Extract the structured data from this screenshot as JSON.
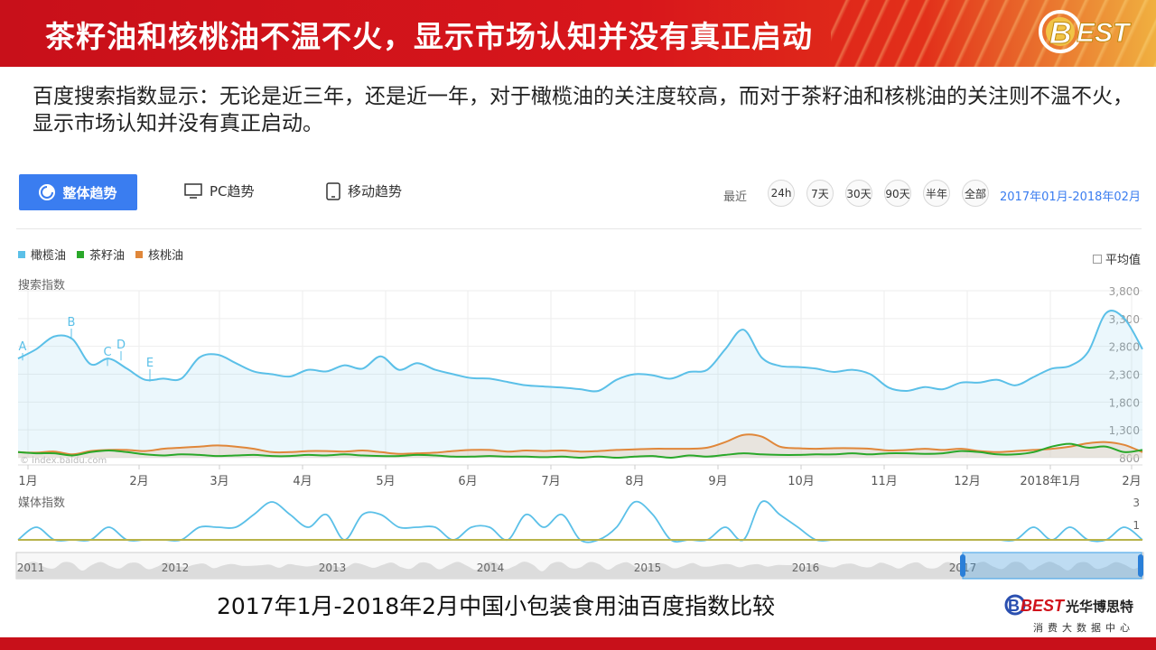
{
  "banner": {
    "title": "茶籽油和核桃油不温不火，显示市场认知并没有真正启动",
    "logo_text": "BEST"
  },
  "intro": "百度搜索指数显示：无论是近三年，还是近一年，对于橄榄油的关注度较高，而对于茶籽油和核桃油的关注则不温不火，显示市场认知并没有真正启动。",
  "toolbar": {
    "overall_label": "整体趋势",
    "pc_label": "PC趋势",
    "mobile_label": "移动趋势",
    "recent_label": "最近",
    "ranges": [
      "24h",
      "7天",
      "30天",
      "90天",
      "半年",
      "全部"
    ],
    "date_range": "2017年01月-2018年02月"
  },
  "colors": {
    "olive": "#5bc0e8",
    "tea": "#2aa82a",
    "walnut": "#e0873a",
    "accent": "#3a7df0",
    "banner": "#d0121b"
  },
  "chart_data": {
    "type": "line",
    "legend": [
      "橄榄油",
      "茶籽油",
      "核桃油"
    ],
    "avg_label": "平均值",
    "ylabel": "搜索指数",
    "yticks": [
      "3,800",
      "3,300",
      "2,800",
      "2,300",
      "1,800",
      "1,300",
      "800"
    ],
    "ylim": [
      800,
      3800
    ],
    "x_labels": [
      "1月",
      "2月",
      "3月",
      "4月",
      "5月",
      "6月",
      "7月",
      "8月",
      "9月",
      "10月",
      "11月",
      "12月",
      "2018年1月",
      "2月"
    ],
    "watermark": "© index.baidu.com",
    "annotations": [
      "A",
      "B",
      "C",
      "D",
      "E"
    ],
    "series": [
      {
        "name": "橄榄油",
        "values": [
          2580,
          2750,
          2980,
          2930,
          2480,
          2580,
          2400,
          2200,
          2220,
          2220,
          2600,
          2650,
          2500,
          2350,
          2300,
          2260,
          2380,
          2350,
          2460,
          2400,
          2620,
          2380,
          2500,
          2380,
          2300,
          2230,
          2220,
          2160,
          2100,
          2080,
          2060,
          2030,
          2000,
          2200,
          2300,
          2280,
          2220,
          2340,
          2380,
          2750,
          3100,
          2600,
          2450,
          2430,
          2400,
          2340,
          2380,
          2300,
          2060,
          2000,
          2070,
          2030,
          2150,
          2150,
          2200,
          2100,
          2250,
          2400,
          2450,
          2700,
          3400,
          3300,
          2750
        ]
      },
      {
        "name": "茶籽油",
        "values": [
          900,
          880,
          880,
          840,
          900,
          930,
          900,
          860,
          840,
          860,
          850,
          830,
          840,
          850,
          830,
          830,
          850,
          840,
          860,
          840,
          830,
          830,
          850,
          840,
          820,
          820,
          830,
          820,
          820,
          810,
          820,
          800,
          820,
          800,
          820,
          830,
          800,
          840,
          820,
          850,
          880,
          860,
          850,
          850,
          860,
          860,
          880,
          860,
          880,
          880,
          870,
          880,
          920,
          900,
          860,
          860,
          900,
          1000,
          1050,
          980,
          1000,
          900,
          940
        ]
      },
      {
        "name": "核桃油",
        "values": [
          900,
          890,
          910,
          860,
          920,
          940,
          940,
          920,
          960,
          980,
          1000,
          1020,
          1000,
          960,
          900,
          900,
          920,
          920,
          910,
          930,
          900,
          870,
          880,
          890,
          920,
          940,
          940,
          910,
          930,
          920,
          930,
          910,
          920,
          940,
          950,
          960,
          960,
          960,
          980,
          1080,
          1210,
          1180,
          1000,
          970,
          960,
          970,
          970,
          960,
          930,
          940,
          960,
          940,
          960,
          920,
          900,
          920,
          940,
          960,
          1000,
          1060,
          1080,
          1030,
          900
        ]
      }
    ],
    "media": {
      "label": "媒体指数",
      "yticks": [
        "3",
        "1"
      ],
      "values": [
        0,
        1,
        0,
        0,
        0,
        1,
        0,
        0,
        0,
        0,
        1,
        1,
        1,
        2,
        3,
        2,
        1,
        2,
        0,
        2,
        2,
        1,
        1,
        1,
        0,
        1,
        1,
        0,
        2,
        1,
        2,
        0,
        0,
        1,
        3,
        2,
        0,
        0,
        0,
        1,
        0,
        3,
        2,
        1,
        0,
        0,
        0,
        0,
        0,
        0,
        0,
        0,
        0,
        0,
        0,
        0,
        1,
        0,
        1,
        0,
        0,
        1,
        0
      ]
    },
    "overview": {
      "years": [
        "2011",
        "2012",
        "2013",
        "2014",
        "2015",
        "2016",
        "2017"
      ]
    }
  },
  "caption": "2017年1月-2018年2月中国小包装食用油百度指数比较",
  "footer": {
    "brand": "BEST",
    "name": "光华博思特",
    "sub": "消费大数据中心"
  }
}
